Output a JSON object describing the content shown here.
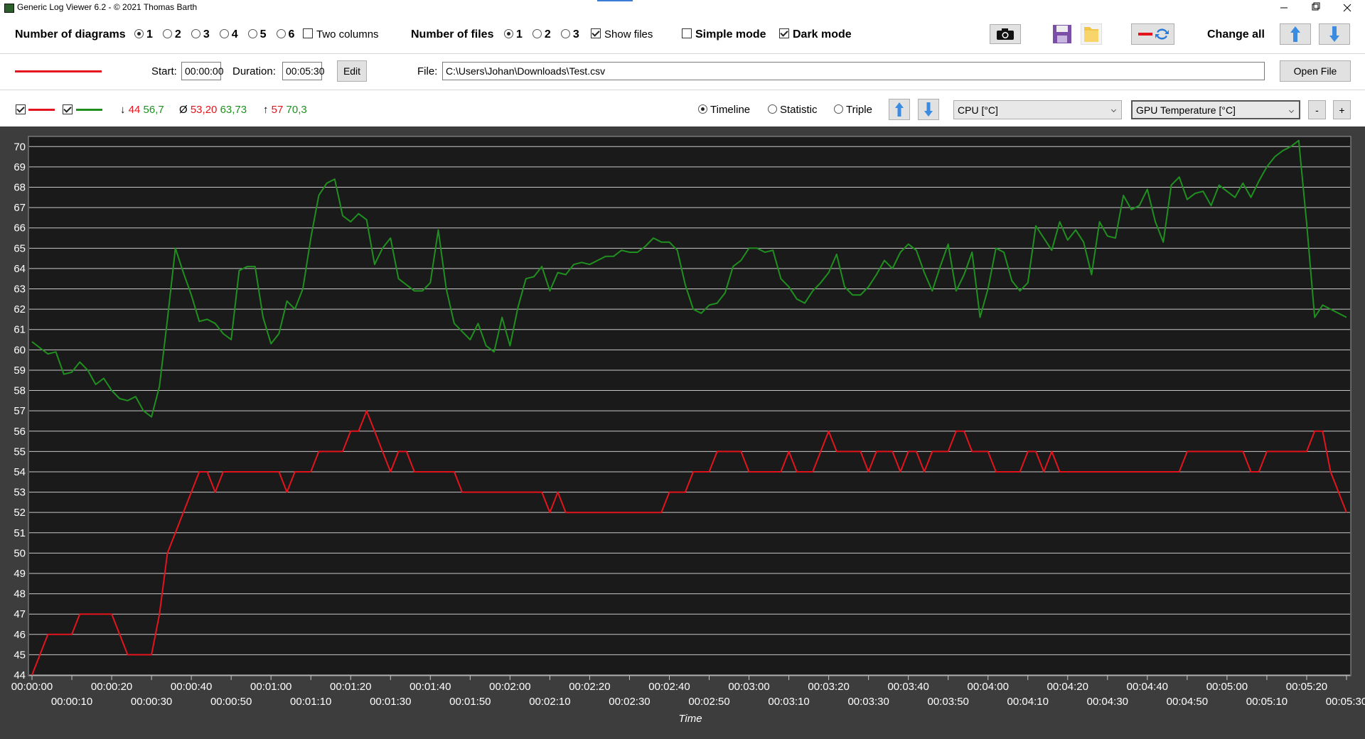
{
  "window": {
    "title": "Generic Log Viewer 6.2 - © 2021 Thomas Barth"
  },
  "toolbar": {
    "diagrams_label": "Number of diagrams",
    "diagram_options": [
      "1",
      "2",
      "3",
      "4",
      "5",
      "6"
    ],
    "two_columns": "Two columns",
    "files_label": "Number of files",
    "file_options": [
      "1",
      "2",
      "3"
    ],
    "show_files": "Show files",
    "simple_mode": "Simple mode",
    "dark_mode": "Dark mode",
    "change_all": "Change all"
  },
  "range": {
    "start_label": "Start:",
    "start": "00:00:00",
    "duration_label": "Duration:",
    "duration": "00:05:30",
    "edit": "Edit",
    "file_label": "File:",
    "file": "C:\\Users\\Johan\\Downloads\\Test.csv",
    "open_file": "Open File"
  },
  "stats": {
    "min_symbol": "↓",
    "min": [
      "44",
      "56,7"
    ],
    "avg_symbol": "Ø",
    "avg": [
      "53,20",
      "63,73"
    ],
    "max_symbol": "↑",
    "max": [
      "57",
      "70,3"
    ]
  },
  "view": {
    "modes": [
      "Timeline",
      "Statistic",
      "Triple"
    ],
    "minus": "-",
    "plus": "+"
  },
  "chart_data": {
    "type": "line",
    "x_label": "Time",
    "xlim": [
      0,
      330
    ],
    "ylim": [
      44,
      70.5
    ],
    "grid": true,
    "yticks": [
      44,
      45,
      46,
      47,
      48,
      49,
      50,
      51,
      52,
      53,
      54,
      55,
      56,
      57,
      58,
      59,
      60,
      61,
      62,
      63,
      64,
      65,
      66,
      67,
      68,
      69,
      70
    ],
    "xticks": [
      {
        "value": 0,
        "label": "00:00:00"
      },
      {
        "value": 10,
        "label": "00:00:10"
      },
      {
        "value": 20,
        "label": "00:00:20"
      },
      {
        "value": 30,
        "label": "00:00:30"
      },
      {
        "value": 40,
        "label": "00:00:40"
      },
      {
        "value": 50,
        "label": "00:00:50"
      },
      {
        "value": 60,
        "label": "00:01:00"
      },
      {
        "value": 70,
        "label": "00:01:10"
      },
      {
        "value": 80,
        "label": "00:01:20"
      },
      {
        "value": 90,
        "label": "00:01:30"
      },
      {
        "value": 100,
        "label": "00:01:40"
      },
      {
        "value": 110,
        "label": "00:01:50"
      },
      {
        "value": 120,
        "label": "00:02:00"
      },
      {
        "value": 130,
        "label": "00:02:10"
      },
      {
        "value": 140,
        "label": "00:02:20"
      },
      {
        "value": 150,
        "label": "00:02:30"
      },
      {
        "value": 160,
        "label": "00:02:40"
      },
      {
        "value": 170,
        "label": "00:02:50"
      },
      {
        "value": 180,
        "label": "00:03:00"
      },
      {
        "value": 190,
        "label": "00:03:10"
      },
      {
        "value": 200,
        "label": "00:03:20"
      },
      {
        "value": 210,
        "label": "00:03:30"
      },
      {
        "value": 220,
        "label": "00:03:40"
      },
      {
        "value": 230,
        "label": "00:03:50"
      },
      {
        "value": 240,
        "label": "00:04:00"
      },
      {
        "value": 250,
        "label": "00:04:10"
      },
      {
        "value": 260,
        "label": "00:04:20"
      },
      {
        "value": 270,
        "label": "00:04:30"
      },
      {
        "value": 280,
        "label": "00:04:40"
      },
      {
        "value": 290,
        "label": "00:04:50"
      },
      {
        "value": 300,
        "label": "00:05:00"
      },
      {
        "value": 310,
        "label": "00:05:10"
      },
      {
        "value": 320,
        "label": "00:05:20"
      },
      {
        "value": 330,
        "label": "00:05:30"
      }
    ],
    "x": [
      0,
      2,
      4,
      6,
      8,
      10,
      12,
      14,
      16,
      18,
      20,
      22,
      24,
      26,
      28,
      30,
      32,
      34,
      36,
      38,
      40,
      42,
      44,
      46,
      48,
      50,
      52,
      54,
      56,
      58,
      60,
      62,
      64,
      66,
      68,
      70,
      72,
      74,
      76,
      78,
      80,
      82,
      84,
      86,
      88,
      90,
      92,
      94,
      96,
      98,
      100,
      102,
      104,
      106,
      108,
      110,
      112,
      114,
      116,
      118,
      120,
      122,
      124,
      126,
      128,
      130,
      132,
      134,
      136,
      138,
      140,
      142,
      144,
      146,
      148,
      150,
      152,
      154,
      156,
      158,
      160,
      162,
      164,
      166,
      168,
      170,
      172,
      174,
      176,
      178,
      180,
      182,
      184,
      186,
      188,
      190,
      192,
      194,
      196,
      198,
      200,
      202,
      204,
      206,
      208,
      210,
      212,
      214,
      216,
      218,
      220,
      222,
      224,
      226,
      228,
      230,
      232,
      234,
      236,
      238,
      240,
      242,
      244,
      246,
      248,
      250,
      252,
      254,
      256,
      258,
      260,
      262,
      264,
      266,
      268,
      270,
      272,
      274,
      276,
      278,
      280,
      282,
      284,
      286,
      288,
      290,
      292,
      294,
      296,
      298,
      300,
      302,
      304,
      306,
      308,
      310,
      312,
      314,
      316,
      318,
      320,
      322,
      324,
      326,
      328,
      330
    ],
    "series": [
      {
        "name": "CPU [°C]",
        "color": "#e3141e",
        "values": [
          44,
          45,
          46,
          46,
          46,
          46,
          47,
          47,
          47,
          47,
          47,
          46,
          45,
          45,
          45,
          45,
          47,
          50,
          51,
          52,
          53,
          54,
          54,
          53,
          54,
          54,
          54,
          54,
          54,
          54,
          54,
          54,
          53,
          54,
          54,
          54,
          55,
          55,
          55,
          55,
          56,
          56,
          57,
          56,
          55,
          54,
          55,
          55,
          54,
          54,
          54,
          54,
          54,
          54,
          53,
          53,
          53,
          53,
          53,
          53,
          53,
          53,
          53,
          53,
          53,
          52,
          53,
          52,
          52,
          52,
          52,
          52,
          52,
          52,
          52,
          52,
          52,
          52,
          52,
          52,
          53,
          53,
          53,
          54,
          54,
          54,
          55,
          55,
          55,
          55,
          54,
          54,
          54,
          54,
          54,
          55,
          54,
          54,
          54,
          55,
          56,
          55,
          55,
          55,
          55,
          54,
          55,
          55,
          55,
          54,
          55,
          55,
          54,
          55,
          55,
          55,
          56,
          56,
          55,
          55,
          55,
          54,
          54,
          54,
          54,
          55,
          55,
          54,
          55,
          54,
          54,
          54,
          54,
          54,
          54,
          54,
          54,
          54,
          54,
          54,
          54,
          54,
          54,
          54,
          54,
          55,
          55,
          55,
          55,
          55,
          55,
          55,
          55,
          54,
          54,
          55,
          55,
          55,
          55,
          55,
          55,
          56,
          56,
          54,
          53,
          52
        ]
      },
      {
        "name": "GPU Temperature [°C]",
        "color": "#1f8f1f",
        "values": [
          60.4,
          60.1,
          59.8,
          59.9,
          58.8,
          58.9,
          59.4,
          59.0,
          58.3,
          58.6,
          58.0,
          57.6,
          57.5,
          57.7,
          57.0,
          56.7,
          58.2,
          61.5,
          65.0,
          63.8,
          62.7,
          61.4,
          61.5,
          61.3,
          60.8,
          60.5,
          63.9,
          64.1,
          64.1,
          61.6,
          60.3,
          60.8,
          62.4,
          62.0,
          63.0,
          65.5,
          67.6,
          68.2,
          68.4,
          66.6,
          66.3,
          66.7,
          66.4,
          64.2,
          65.0,
          65.5,
          63.5,
          63.2,
          62.9,
          62.9,
          63.3,
          65.9,
          63.0,
          61.3,
          60.9,
          60.5,
          61.3,
          60.2,
          59.9,
          61.6,
          60.2,
          62.1,
          63.5,
          63.6,
          64.1,
          62.9,
          63.8,
          63.7,
          64.2,
          64.3,
          64.2,
          64.4,
          64.6,
          64.6,
          64.9,
          64.8,
          64.8,
          65.1,
          65.5,
          65.3,
          65.3,
          64.9,
          63.2,
          62.0,
          61.8,
          62.2,
          62.3,
          62.8,
          64.1,
          64.4,
          65.0,
          65.0,
          64.8,
          64.9,
          63.5,
          63.1,
          62.5,
          62.3,
          62.9,
          63.3,
          63.8,
          64.7,
          63.1,
          62.7,
          62.7,
          63.1,
          63.7,
          64.4,
          64.0,
          64.8,
          65.2,
          64.9,
          63.8,
          62.9,
          64.1,
          65.2,
          62.9,
          63.7,
          64.8,
          61.6,
          63.0,
          65.0,
          64.8,
          63.4,
          62.9,
          63.3,
          66.1,
          65.5,
          64.9,
          66.3,
          65.4,
          65.9,
          65.3,
          63.7,
          66.3,
          65.6,
          65.5,
          67.6,
          66.9,
          67.1,
          67.9,
          66.3,
          65.3,
          68.1,
          68.5,
          67.4,
          67.7,
          67.8,
          67.1,
          68.1,
          67.8,
          67.5,
          68.2,
          67.5,
          68.3,
          69.0,
          69.5,
          69.8,
          70.0,
          70.3,
          66.2,
          61.6,
          62.2,
          62.0,
          61.8,
          61.6
        ]
      }
    ]
  }
}
